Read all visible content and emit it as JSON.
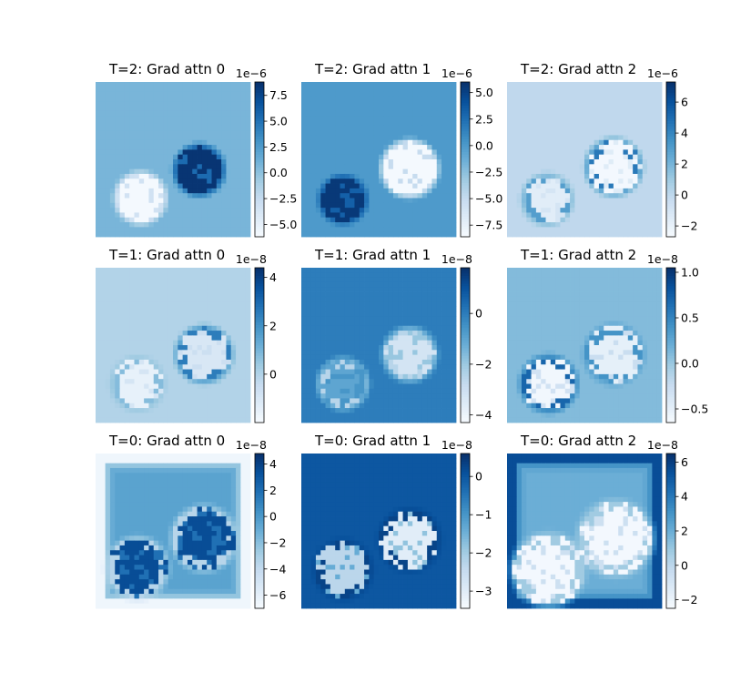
{
  "chart_data": [
    {
      "type": "heatmap",
      "title": "T=2: Grad attn 0",
      "colormap": "Blues",
      "grid": false,
      "colorbar": {
        "exponent_label": "1e−6",
        "ticks": [
          -5.0,
          -2.5,
          0.0,
          2.5,
          5.0,
          7.5
        ],
        "tick_labels": [
          "−5.0",
          "−2.5",
          "0.0",
          "2.5",
          "5.0",
          "7.5"
        ],
        "range": [
          -6.2,
          8.8
        ]
      },
      "field": {
        "background": 0.8,
        "blobs": [
          {
            "cx": 0.29,
            "cy": 0.75,
            "r": 0.15,
            "value": -6.0,
            "rim": 0
          },
          {
            "cx": 0.67,
            "cy": 0.57,
            "r": 0.15,
            "value": 8.5,
            "rim": 0
          }
        ]
      }
    },
    {
      "type": "heatmap",
      "title": "T=2: Grad attn 1",
      "colormap": "Blues",
      "grid": false,
      "colorbar": {
        "exponent_label": "1e−6",
        "ticks": [
          -7.5,
          -5.0,
          -2.5,
          0.0,
          2.5,
          5.0
        ],
        "tick_labels": [
          "−7.5",
          "−5.0",
          "−2.5",
          "0.0",
          "2.5",
          "5.0"
        ],
        "range": [
          -8.6,
          6.0
        ]
      },
      "field": {
        "background": 0.0,
        "blobs": [
          {
            "cx": 0.27,
            "cy": 0.76,
            "r": 0.14,
            "value": 5.5,
            "rim": 0
          },
          {
            "cx": 0.7,
            "cy": 0.56,
            "r": 0.17,
            "value": -8.4,
            "rim": 0
          }
        ]
      }
    },
    {
      "type": "heatmap",
      "title": "T=2: Grad attn 2",
      "colormap": "Blues",
      "grid": false,
      "colorbar": {
        "exponent_label": "1e−6",
        "ticks": [
          -2,
          0,
          2,
          4,
          6
        ],
        "tick_labels": [
          "−2",
          "0",
          "2",
          "4",
          "6"
        ],
        "range": [
          -2.7,
          7.3
        ]
      },
      "field": {
        "background": 0.0,
        "blobs": [
          {
            "cx": 0.26,
            "cy": 0.76,
            "r": 0.15,
            "value": -1.6,
            "rim": 3.0
          },
          {
            "cx": 0.69,
            "cy": 0.55,
            "r": 0.17,
            "value": -2.5,
            "rim": 4.5
          }
        ]
      }
    },
    {
      "type": "heatmap",
      "title": "T=1: Grad attn 0",
      "colormap": "Blues",
      "grid": false,
      "colorbar": {
        "exponent_label": "1e−8",
        "ticks": [
          0,
          2,
          4
        ],
        "tick_labels": [
          "0",
          "2",
          "4"
        ],
        "range": [
          -2.0,
          4.4
        ]
      },
      "field": {
        "background": 0.0,
        "blobs": [
          {
            "cx": 0.27,
            "cy": 0.75,
            "r": 0.16,
            "value": -1.5,
            "rim": 0.8
          },
          {
            "cx": 0.7,
            "cy": 0.56,
            "r": 0.17,
            "value": -1.0,
            "rim": 2.5
          }
        ]
      }
    },
    {
      "type": "heatmap",
      "title": "T=1: Grad attn 1",
      "colormap": "Blues",
      "grid": false,
      "colorbar": {
        "exponent_label": "1e−8",
        "ticks": [
          -4,
          -2,
          0
        ],
        "tick_labels": [
          "−4",
          "−2",
          "0"
        ],
        "range": [
          -4.3,
          1.8
        ]
      },
      "field": {
        "background": 0.0,
        "blobs": [
          {
            "cx": 0.27,
            "cy": 0.75,
            "r": 0.15,
            "value": -1.0,
            "rim": -2.5
          },
          {
            "cx": 0.7,
            "cy": 0.56,
            "r": 0.16,
            "value": -3.2,
            "rim": -2.5
          }
        ]
      }
    },
    {
      "type": "heatmap",
      "title": "T=1: Grad attn 2",
      "colormap": "Blues",
      "grid": false,
      "colorbar": {
        "exponent_label": "1e−8",
        "ticks": [
          -0.5,
          0.0,
          0.5,
          1.0
        ],
        "tick_labels": [
          "−0.5",
          "0.0",
          "0.5",
          "1.0"
        ],
        "range": [
          -0.65,
          1.05
        ]
      },
      "field": {
        "background": 0.1,
        "blobs": [
          {
            "cx": 0.27,
            "cy": 0.75,
            "r": 0.17,
            "value": -0.6,
            "rim": 0.7
          },
          {
            "cx": 0.69,
            "cy": 0.56,
            "r": 0.18,
            "value": -0.5,
            "rim": 0.4
          }
        ]
      }
    },
    {
      "type": "heatmap",
      "title": "T=0: Grad attn 0",
      "colormap": "Blues",
      "grid": false,
      "colorbar": {
        "exponent_label": "1e−8",
        "ticks": [
          -6,
          -4,
          -2,
          0,
          2,
          4
        ],
        "tick_labels": [
          "−6",
          "−4",
          "−2",
          "0",
          "2",
          "4"
        ],
        "range": [
          -7.0,
          4.8
        ]
      },
      "field": {
        "background": -0.5,
        "border": -6.5,
        "blobs": [
          {
            "cx": 0.27,
            "cy": 0.74,
            "r": 0.19,
            "value": 3.5,
            "rim": -3.5
          },
          {
            "cx": 0.7,
            "cy": 0.55,
            "r": 0.2,
            "value": 3.5,
            "rim": -3.5
          }
        ]
      }
    },
    {
      "type": "heatmap",
      "title": "T=0: Grad attn 1",
      "colormap": "Blues",
      "grid": false,
      "colorbar": {
        "exponent_label": "1e−8",
        "ticks": [
          -3,
          -2,
          -1,
          0
        ],
        "tick_labels": [
          "−3",
          "−2",
          "−1",
          "0"
        ],
        "range": [
          -3.45,
          0.6
        ]
      },
      "field": {
        "background": 0.0,
        "blobs": [
          {
            "cx": 0.27,
            "cy": 0.75,
            "r": 0.18,
            "value": -2.3,
            "rim": 0.3
          },
          {
            "cx": 0.7,
            "cy": 0.56,
            "r": 0.19,
            "value": -3.0,
            "rim": 0.3
          }
        ]
      }
    },
    {
      "type": "heatmap",
      "title": "T=0: Grad attn 2",
      "colormap": "Blues",
      "grid": false,
      "colorbar": {
        "exponent_label": "1e−8",
        "ticks": [
          -2,
          0,
          2,
          4,
          6
        ],
        "tick_labels": [
          "−2",
          "0",
          "2",
          "4",
          "6"
        ],
        "range": [
          -2.5,
          6.5
        ]
      },
      "field": {
        "background": 2.0,
        "border": 5.5,
        "blobs": [
          {
            "cx": 0.27,
            "cy": 0.75,
            "r": 0.23,
            "value": -2.3,
            "rim": 0.8
          },
          {
            "cx": 0.7,
            "cy": 0.55,
            "r": 0.24,
            "value": -2.3,
            "rim": 0.8
          }
        ]
      }
    }
  ]
}
